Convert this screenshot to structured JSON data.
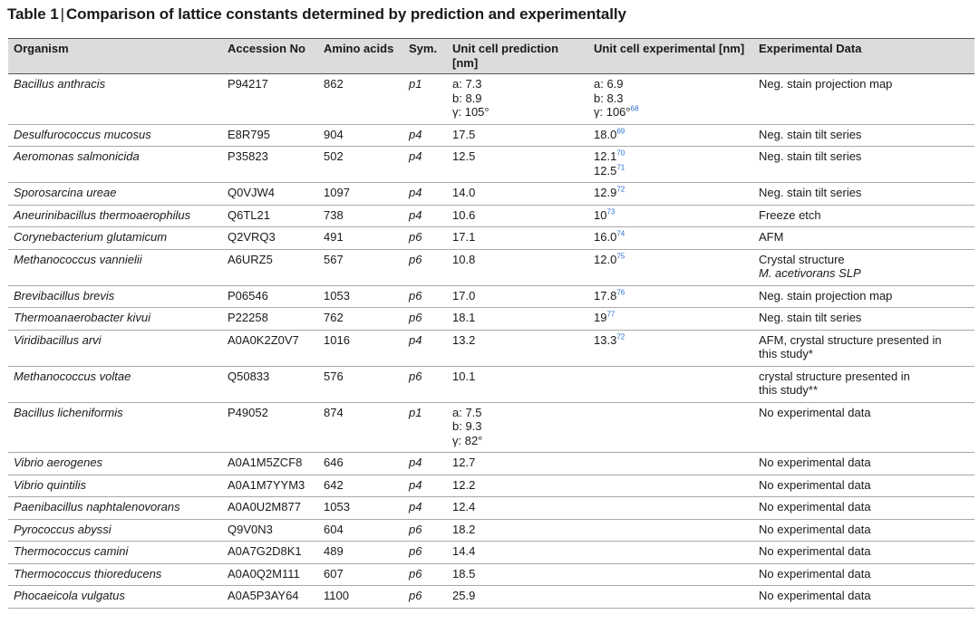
{
  "table": {
    "number": "Table 1",
    "separator": "|",
    "caption": "Comparison of lattice constants determined by prediction and experimentally",
    "headers": [
      "Organism",
      "Accession No",
      "Amino acids",
      "Sym.",
      "Unit cell prediction [nm]",
      "Unit cell experimental [nm]",
      "Experimental Data"
    ],
    "rows": [
      {
        "organism": "Bacillus anthracis",
        "accession": "P94217",
        "aa": "862",
        "sym": "p1",
        "prediction": [
          "a: 7.3",
          "b: 8.9",
          "γ: 105°"
        ],
        "experimental": [
          {
            "text": "a: 6.9",
            "ref": ""
          },
          {
            "text": "b: 8.3",
            "ref": ""
          },
          {
            "text": "γ: 106°",
            "ref": "68"
          }
        ],
        "data": [
          {
            "text": "Neg. stain projection map",
            "italic": false
          }
        ]
      },
      {
        "organism": "Desulfurococcus mucosus",
        "accession": "E8R795",
        "aa": "904",
        "sym": "p4",
        "prediction": [
          "17.5"
        ],
        "experimental": [
          {
            "text": "18.0",
            "ref": "69"
          }
        ],
        "data": [
          {
            "text": "Neg. stain tilt series",
            "italic": false
          }
        ]
      },
      {
        "organism": "Aeromonas salmonicida",
        "accession": "P35823",
        "aa": "502",
        "sym": "p4",
        "prediction": [
          "12.5"
        ],
        "experimental": [
          {
            "text": "12.1",
            "ref": "70"
          },
          {
            "text": "12.5",
            "ref": "71"
          }
        ],
        "data": [
          {
            "text": "Neg. stain tilt series",
            "italic": false
          }
        ]
      },
      {
        "organism": "Sporosarcina ureae",
        "accession": "Q0VJW4",
        "aa": "1097",
        "sym": "p4",
        "prediction": [
          "14.0"
        ],
        "experimental": [
          {
            "text": "12.9",
            "ref": "72"
          }
        ],
        "data": [
          {
            "text": "Neg. stain tilt series",
            "italic": false
          }
        ]
      },
      {
        "organism": "Aneurinibacillus thermoaerophilus",
        "accession": "Q6TL21",
        "aa": "738",
        "sym": "p4",
        "prediction": [
          "10.6"
        ],
        "experimental": [
          {
            "text": "10",
            "ref": "73"
          }
        ],
        "data": [
          {
            "text": "Freeze etch",
            "italic": false
          }
        ]
      },
      {
        "organism": "Corynebacterium glutamicum",
        "accession": "Q2VRQ3",
        "aa": "491",
        "sym": "p6",
        "prediction": [
          "17.1"
        ],
        "experimental": [
          {
            "text": "16.0",
            "ref": "74"
          }
        ],
        "data": [
          {
            "text": "AFM",
            "italic": false
          }
        ]
      },
      {
        "organism": "Methanococcus vannielii",
        "accession": "A6URZ5",
        "aa": "567",
        "sym": "p6",
        "prediction": [
          "10.8"
        ],
        "experimental": [
          {
            "text": "12.0",
            "ref": "75"
          }
        ],
        "data": [
          {
            "text": "Crystal structure",
            "italic": false
          },
          {
            "text": "M. acetivorans SLP",
            "italic": true
          }
        ]
      },
      {
        "organism": "Brevibacillus brevis",
        "accession": "P06546",
        "aa": "1053",
        "sym": "p6",
        "prediction": [
          "17.0"
        ],
        "experimental": [
          {
            "text": "17.8",
            "ref": "76"
          }
        ],
        "data": [
          {
            "text": "Neg. stain projection map",
            "italic": false
          }
        ]
      },
      {
        "organism": "Thermoanaerobacter kivui",
        "accession": "P22258",
        "aa": "762",
        "sym": "p6",
        "prediction": [
          "18.1"
        ],
        "experimental": [
          {
            "text": "19",
            "ref": "77"
          }
        ],
        "data": [
          {
            "text": "Neg. stain tilt series",
            "italic": false
          }
        ]
      },
      {
        "organism": "Viridibacillus arvi",
        "accession": "A0A0K2Z0V7",
        "aa": "1016",
        "sym": "p4",
        "prediction": [
          "13.2"
        ],
        "experimental": [
          {
            "text": "13.3",
            "ref": "72"
          }
        ],
        "data": [
          {
            "text": "AFM, crystal structure presented in",
            "italic": false
          },
          {
            "text": "this study*",
            "italic": false
          }
        ]
      },
      {
        "organism": "Methanococcus voltae",
        "accession": "Q50833",
        "aa": "576",
        "sym": "p6",
        "prediction": [
          "10.1"
        ],
        "experimental": [],
        "data": [
          {
            "text": "crystal structure presented in",
            "italic": false
          },
          {
            "text": "this study**",
            "italic": false
          }
        ]
      },
      {
        "organism": "Bacillus licheniformis",
        "accession": "P49052",
        "aa": "874",
        "sym": "p1",
        "prediction": [
          "a: 7.5",
          "b: 9.3",
          "γ: 82°"
        ],
        "experimental": [],
        "data": [
          {
            "text": "No experimental data",
            "italic": false
          }
        ]
      },
      {
        "organism": "Vibrio aerogenes",
        "accession": "A0A1M5ZCF8",
        "aa": "646",
        "sym": "p4",
        "prediction": [
          "12.7"
        ],
        "experimental": [],
        "data": [
          {
            "text": "No experimental data",
            "italic": false
          }
        ]
      },
      {
        "organism": "Vibrio quintilis",
        "accession": "A0A1M7YYM3",
        "aa": "642",
        "sym": "p4",
        "prediction": [
          "12.2"
        ],
        "experimental": [],
        "data": [
          {
            "text": "No experimental data",
            "italic": false
          }
        ]
      },
      {
        "organism": "Paenibacillus naphtalenovorans",
        "accession": "A0A0U2M877",
        "aa": "1053",
        "sym": "p4",
        "prediction": [
          "12.4"
        ],
        "experimental": [],
        "data": [
          {
            "text": "No experimental data",
            "italic": false
          }
        ]
      },
      {
        "organism": "Pyrococcus abyssi",
        "accession": "Q9V0N3",
        "aa": "604",
        "sym": "p6",
        "prediction": [
          "18.2"
        ],
        "experimental": [],
        "data": [
          {
            "text": "No experimental data",
            "italic": false
          }
        ]
      },
      {
        "organism": "Thermococcus camini",
        "accession": "A0A7G2D8K1",
        "aa": "489",
        "sym": "p6",
        "prediction": [
          "14.4"
        ],
        "experimental": [],
        "data": [
          {
            "text": "No experimental data",
            "italic": false
          }
        ]
      },
      {
        "organism": "Thermococcus thioreducens",
        "accession": "A0A0Q2M111",
        "aa": "607",
        "sym": "p6",
        "prediction": [
          "18.5"
        ],
        "experimental": [],
        "data": [
          {
            "text": "No experimental data",
            "italic": false
          }
        ]
      },
      {
        "organism": "Phocaeicola vulgatus",
        "accession": "A0A5P3AY64",
        "aa": "1100",
        "sym": "p6",
        "prediction": [
          "25.9"
        ],
        "experimental": [],
        "data": [
          {
            "text": "No experimental data",
            "italic": false
          }
        ]
      }
    ]
  }
}
